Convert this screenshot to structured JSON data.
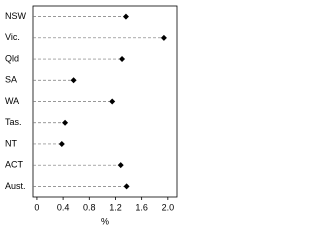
{
  "chart_data": {
    "type": "dot",
    "x_label": "%",
    "categories": [
      "NSW",
      "Vic.",
      "Qld",
      "SA",
      "WA",
      "Tas.",
      "NT",
      "ACT",
      "Aust."
    ],
    "values": [
      1.36,
      1.94,
      1.3,
      0.56,
      1.15,
      0.43,
      0.38,
      1.28,
      1.37
    ],
    "color": "#000000",
    "xlim": [
      -0.06,
      2.14
    ],
    "xticks": [
      0,
      0.4,
      0.8,
      1.2,
      1.6,
      {
        "value": 2,
        "label": "2.0"
      }
    ]
  }
}
